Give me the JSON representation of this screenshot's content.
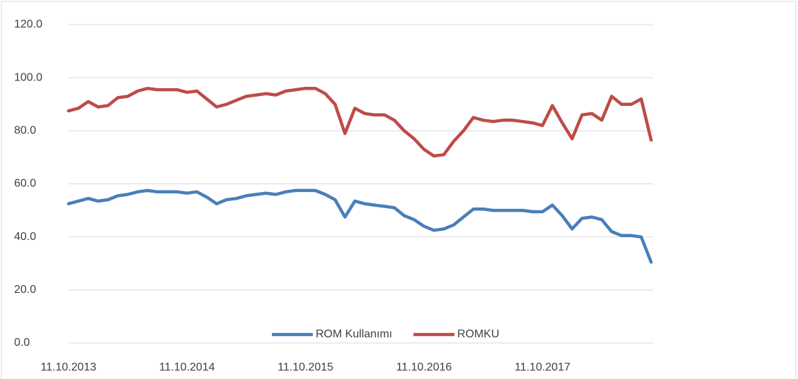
{
  "chart_data": {
    "type": "line",
    "categories": [
      "11.10.2013",
      null,
      null,
      null,
      null,
      null,
      null,
      null,
      null,
      null,
      null,
      null,
      "11.10.2014",
      null,
      null,
      null,
      null,
      null,
      null,
      null,
      null,
      null,
      null,
      null,
      "11.10.2015",
      null,
      null,
      null,
      null,
      null,
      null,
      null,
      null,
      null,
      null,
      null,
      "11.10.2016",
      null,
      null,
      null,
      null,
      null,
      null,
      null,
      null,
      null,
      null,
      null,
      "11.10.2017",
      null,
      null,
      null,
      null,
      null,
      null,
      null,
      null,
      null,
      null,
      null
    ],
    "series": [
      {
        "name": "ROM Kullanımı",
        "color": "#4a7ebb",
        "values": [
          52.5,
          53.5,
          54.5,
          53.5,
          54,
          55.5,
          56,
          57,
          57.5,
          57,
          57,
          57,
          56.5,
          57,
          55,
          52.5,
          54,
          54.5,
          55.5,
          56,
          56.5,
          56,
          57,
          57.5,
          57.5,
          57.5,
          56,
          54,
          47.5,
          53.5,
          52.5,
          52,
          51.5,
          51,
          48,
          46.5,
          44,
          42.5,
          43,
          44.5,
          47.5,
          50.5,
          50.5,
          50,
          50,
          50,
          50,
          49.5,
          49.5,
          52,
          48,
          43,
          47,
          47.5,
          46.5,
          42,
          40.5,
          40.5,
          40,
          30.5
        ]
      },
      {
        "name": "ROMKU",
        "color": "#be4b48",
        "values": [
          87.5,
          88.5,
          91,
          89,
          89.5,
          92.5,
          93,
          95,
          96,
          95.5,
          95.5,
          95.5,
          94.5,
          95,
          92,
          89,
          90,
          91.5,
          93,
          93.5,
          94,
          93.5,
          95,
          95.5,
          96,
          96,
          94,
          90,
          79,
          88.5,
          86.5,
          86,
          86,
          84,
          80,
          77,
          73,
          70.5,
          71,
          76,
          80,
          85,
          84,
          83.5,
          84,
          84,
          83.5,
          83,
          82,
          89.5,
          83,
          77,
          86,
          86.5,
          84,
          93,
          90,
          90,
          92,
          76.5
        ]
      }
    ],
    "ylim": [
      0,
      120
    ],
    "yticks": [
      {
        "value": 0,
        "label": "0.0"
      },
      {
        "value": 20,
        "label": "20.0"
      },
      {
        "value": 40,
        "label": "40.0"
      },
      {
        "value": 60,
        "label": "60.0"
      },
      {
        "value": 80,
        "label": "80.0"
      },
      {
        "value": 100,
        "label": "100.0"
      },
      {
        "value": 120,
        "label": "120.0"
      }
    ],
    "grid": true,
    "legend": "bottom"
  }
}
